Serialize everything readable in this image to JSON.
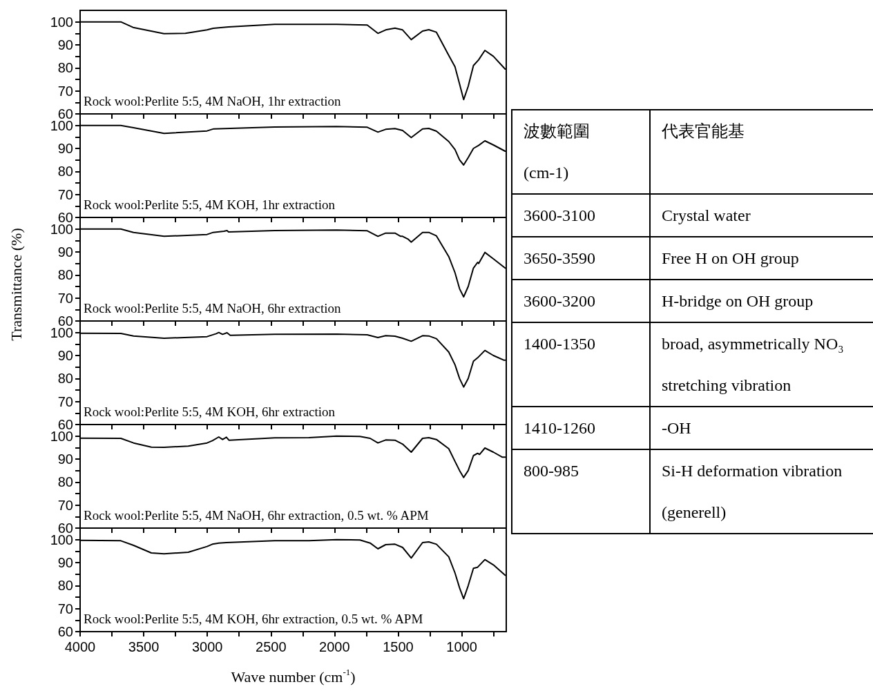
{
  "chart_data": [
    {
      "type": "line",
      "xlim": [
        4000,
        650
      ],
      "ylim": [
        60,
        105
      ],
      "tick_labels": "y",
      "xticks": [
        4000,
        {
          "value": 3750,
          "label": null
        },
        3500,
        {
          "value": 3250,
          "label": null
        },
        3000,
        {
          "value": 2750,
          "label": null
        },
        2500,
        {
          "value": 2250,
          "label": null
        },
        2000,
        {
          "value": 1750,
          "label": null
        },
        1500,
        {
          "value": 1250,
          "label": null
        },
        1000,
        {
          "value": 750,
          "label": null
        }
      ],
      "yticks": [
        60,
        {
          "value": 65,
          "label": null
        },
        70,
        {
          "value": 75,
          "label": null
        },
        80,
        {
          "value": 85,
          "label": null
        },
        90,
        {
          "value": 95,
          "label": null
        },
        100
      ],
      "annotations": [
        "Rock wool:Perlite 5:5, 4M NaOH, 1hr extraction"
      ],
      "x": [
        4000,
        3680,
        3584,
        3341,
        3172,
        3002,
        2954,
        2833,
        2470,
        1985,
        1743,
        1659,
        1598,
        1525,
        1465,
        1397,
        1308,
        1259,
        1199,
        1102,
        1053,
        1017,
        985,
        949,
        908,
        867,
        818,
        751,
        659
      ],
      "series": [
        {
          "color": "#000000",
          "values": [
            100,
            100,
            97.6,
            94.9,
            95,
            96.5,
            97.2,
            97.8,
            98.9,
            98.9,
            98.6,
            95,
            96.5,
            97.3,
            96.5,
            92.3,
            96,
            96.6,
            95.5,
            85.4,
            80.5,
            73,
            66.2,
            72,
            81,
            83.5,
            87.6,
            85,
            79.5
          ]
        }
      ]
    },
    {
      "type": "line",
      "xlim": [
        4000,
        650
      ],
      "ylim": [
        60,
        105
      ],
      "tick_labels": "y",
      "xticks": [
        4000,
        {
          "value": 3750,
          "label": null
        },
        3500,
        {
          "value": 3250,
          "label": null
        },
        3000,
        {
          "value": 2750,
          "label": null
        },
        2500,
        {
          "value": 2250,
          "label": null
        },
        2000,
        {
          "value": 1750,
          "label": null
        },
        1500,
        {
          "value": 1250,
          "label": null
        },
        1000,
        {
          "value": 750,
          "label": null
        }
      ],
      "yticks": [
        60,
        {
          "value": 65,
          "label": null
        },
        70,
        {
          "value": 75,
          "label": null
        },
        80,
        {
          "value": 85,
          "label": null
        },
        90,
        {
          "value": 95,
          "label": null
        },
        100
      ],
      "annotations": [
        "Rock wool:Perlite 5:5, 4M KOH, 1hr extraction"
      ],
      "x": [
        4000,
        3680,
        3580,
        3340,
        3002,
        2950,
        2470,
        1985,
        1743,
        1659,
        1598,
        1525,
        1465,
        1397,
        1308,
        1259,
        1199,
        1102,
        1053,
        1017,
        985,
        949,
        908,
        867,
        818,
        751,
        659
      ],
      "series": [
        {
          "color": "#000000",
          "values": [
            100,
            100,
            99,
            96.5,
            97.6,
            98.5,
            99.3,
            99.5,
            99.2,
            97.1,
            98.3,
            98.6,
            97.8,
            94.7,
            98.5,
            98.7,
            97.5,
            93,
            89.5,
            85,
            82.8,
            86,
            90,
            91.3,
            93.3,
            91.5,
            88.8
          ]
        }
      ]
    },
    {
      "type": "line",
      "xlim": [
        4000,
        650
      ],
      "ylim": [
        60,
        105
      ],
      "tick_labels": "y",
      "ylabel": "Transmittance (%)",
      "xticks": [
        4000,
        {
          "value": 3750,
          "label": null
        },
        3500,
        {
          "value": 3250,
          "label": null
        },
        3000,
        {
          "value": 2750,
          "label": null
        },
        2500,
        {
          "value": 2250,
          "label": null
        },
        2000,
        {
          "value": 1750,
          "label": null
        },
        1500,
        {
          "value": 1250,
          "label": null
        },
        1000,
        {
          "value": 750,
          "label": null
        }
      ],
      "yticks": [
        60,
        {
          "value": 65,
          "label": null
        },
        70,
        {
          "value": 75,
          "label": null
        },
        80,
        {
          "value": 85,
          "label": null
        },
        90,
        {
          "value": 95,
          "label": null
        },
        100
      ],
      "annotations": [
        "Rock wool:Perlite 5:5, 4M NaOH, 6hr extraction"
      ],
      "x": [
        4000,
        3680,
        3580,
        3340,
        3002,
        2954,
        2870,
        2845,
        2833,
        2470,
        1985,
        1743,
        1659,
        1598,
        1525,
        1480,
        1465,
        1420,
        1397,
        1308,
        1259,
        1199,
        1102,
        1053,
        1017,
        985,
        949,
        908,
        875,
        867,
        818,
        751,
        659
      ],
      "series": [
        {
          "color": "#000000",
          "values": [
            100,
            100,
            98.5,
            96.8,
            97.6,
            98.5,
            99,
            99.3,
            98.7,
            99.3,
            99.5,
            99.2,
            96.8,
            98.2,
            98.2,
            96.8,
            96.8,
            95.5,
            94.3,
            98.5,
            98.5,
            97,
            88,
            81,
            74,
            70.5,
            75,
            83,
            85.5,
            85,
            89.8,
            87,
            83
          ]
        }
      ]
    },
    {
      "type": "line",
      "xlim": [
        4000,
        650
      ],
      "ylim": [
        60,
        105
      ],
      "tick_labels": "y",
      "xticks": [
        4000,
        {
          "value": 3750,
          "label": null
        },
        3500,
        {
          "value": 3250,
          "label": null
        },
        3000,
        {
          "value": 2750,
          "label": null
        },
        2500,
        {
          "value": 2250,
          "label": null
        },
        2000,
        {
          "value": 1750,
          "label": null
        },
        1500,
        {
          "value": 1250,
          "label": null
        },
        1000,
        {
          "value": 750,
          "label": null
        }
      ],
      "yticks": [
        60,
        {
          "value": 65,
          "label": null
        },
        70,
        {
          "value": 75,
          "label": null
        },
        80,
        {
          "value": 85,
          "label": null
        },
        90,
        {
          "value": 95,
          "label": null
        },
        100
      ],
      "annotations": [
        "Rock wool:Perlite 5:5, 4M KOH, 6hr extraction"
      ],
      "x": [
        4000,
        3680,
        3580,
        3340,
        3002,
        2930,
        2910,
        2880,
        2845,
        2820,
        2470,
        1985,
        1743,
        1659,
        1598,
        1525,
        1465,
        1397,
        1308,
        1259,
        1199,
        1102,
        1053,
        1017,
        985,
        949,
        908,
        875,
        818,
        751,
        670,
        659
      ],
      "series": [
        {
          "color": "#000000",
          "values": [
            99.7,
            99.6,
            98.5,
            97.5,
            98.2,
            99.5,
            100,
            99.2,
            99.9,
            98.8,
            99.2,
            99.3,
            99,
            97.8,
            98.6,
            98.4,
            97.5,
            96.2,
            98.6,
            98.5,
            97.3,
            91.5,
            86,
            80,
            76.3,
            80,
            87.5,
            89,
            92.2,
            90,
            88,
            88
          ]
        }
      ]
    },
    {
      "type": "line",
      "xlim": [
        4000,
        650
      ],
      "ylim": [
        60,
        105
      ],
      "tick_labels": "y",
      "xticks": [
        4000,
        {
          "value": 3750,
          "label": null
        },
        3500,
        {
          "value": 3250,
          "label": null
        },
        3000,
        {
          "value": 2750,
          "label": null
        },
        2500,
        {
          "value": 2250,
          "label": null
        },
        2000,
        {
          "value": 1750,
          "label": null
        },
        1500,
        {
          "value": 1250,
          "label": null
        },
        1000,
        {
          "value": 750,
          "label": null
        }
      ],
      "yticks": [
        60,
        {
          "value": 65,
          "label": null
        },
        70,
        {
          "value": 75,
          "label": null
        },
        80,
        {
          "value": 85,
          "label": null
        },
        90,
        {
          "value": 95,
          "label": null
        },
        100
      ],
      "annotations": [
        "Rock wool:Perlite 5:5, 4M NaOH, 6hr extraction, 0.5 wt. % APM"
      ],
      "x": [
        4000,
        3680,
        3580,
        3440,
        3340,
        3150,
        3002,
        2960,
        2910,
        2880,
        2850,
        2830,
        2470,
        2200,
        1985,
        1800,
        1720,
        1659,
        1598,
        1525,
        1465,
        1397,
        1308,
        1259,
        1199,
        1102,
        1053,
        1017,
        985,
        949,
        908,
        875,
        860,
        818,
        751,
        680,
        659
      ],
      "series": [
        {
          "color": "#000000",
          "values": [
            99.1,
            99,
            97,
            95.2,
            95.1,
            95.6,
            97,
            98,
            99.6,
            98.5,
            99.5,
            98.2,
            99.2,
            99.3,
            100,
            99.8,
            99,
            97,
            98.3,
            98.2,
            96.5,
            93,
            99,
            99.3,
            98.5,
            94.5,
            89,
            85,
            82,
            85,
            91.5,
            92.5,
            92,
            94.8,
            93,
            90.8,
            90.8
          ]
        }
      ]
    },
    {
      "type": "line",
      "xlim": [
        4000,
        650
      ],
      "ylim": [
        60,
        105
      ],
      "xlabel": "Wave number (cm$^{-1}$)",
      "xticks": [
        4000,
        {
          "value": 3750,
          "label": null
        },
        3500,
        {
          "value": 3250,
          "label": null
        },
        3000,
        {
          "value": 2750,
          "label": null
        },
        2500,
        {
          "value": 2250,
          "label": null
        },
        2000,
        {
          "value": 1750,
          "label": null
        },
        1500,
        {
          "value": 1250,
          "label": null
        },
        1000,
        {
          "value": 750,
          "label": null
        }
      ],
      "yticks": [
        60,
        {
          "value": 65,
          "label": null
        },
        70,
        {
          "value": 75,
          "label": null
        },
        80,
        {
          "value": 85,
          "label": null
        },
        90,
        {
          "value": 95,
          "label": null
        },
        100
      ],
      "annotations": [
        "Rock wool:Perlite 5:5, 4M KOH, 6hr extraction, 0.5 wt. % APM"
      ],
      "x": [
        4000,
        3680,
        3580,
        3440,
        3340,
        3150,
        3002,
        2960,
        2910,
        2850,
        2470,
        2200,
        1985,
        1800,
        1720,
        1659,
        1598,
        1525,
        1465,
        1397,
        1308,
        1259,
        1199,
        1102,
        1053,
        1017,
        985,
        949,
        908,
        875,
        818,
        751,
        659
      ],
      "series": [
        {
          "color": "#000000",
          "values": [
            99.7,
            99.5,
            97.5,
            94.2,
            93.8,
            94.5,
            97,
            98,
            98.5,
            98.7,
            99.5,
            99.5,
            100,
            99.8,
            98.5,
            96,
            97.8,
            98,
            96.6,
            92,
            98.7,
            99,
            98,
            92.5,
            85.5,
            79,
            74.3,
            80,
            87.5,
            88,
            91.3,
            89,
            84.5
          ]
        }
      ]
    },
    {
      "type": "other",
      "annotations": [
        "波數範圍\n(cm-1)",
        "代表官能基",
        "3600-3100",
        "Crystal water",
        "3650-3590",
        "Free H on OH group",
        "3600-3200",
        "H-bridge on OH group",
        "1400-1350",
        "broad, asymmetrically NO₃ stretching vibration",
        "1410-1260",
        "-OH",
        "800-985",
        "Si-H deformation vibration (generell)"
      ]
    }
  ]
}
